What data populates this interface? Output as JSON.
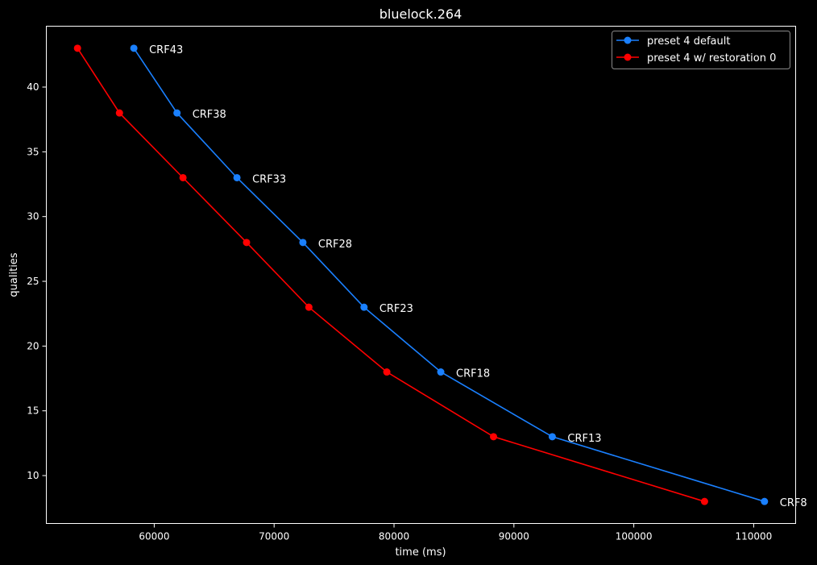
{
  "chart_data": {
    "type": "line",
    "title": "bluelock.264",
    "xlabel": "time (ms)",
    "ylabel": "qualities",
    "xlim": [
      51000,
      113500
    ],
    "ylim": [
      6.3,
      44.7
    ],
    "x_ticks": [
      60000,
      70000,
      80000,
      90000,
      100000,
      110000
    ],
    "y_ticks": [
      10,
      15,
      20,
      25,
      30,
      35,
      40
    ],
    "grid": false,
    "legend_position": "top-right",
    "background": "#000000",
    "series": [
      {
        "name": "preset 4 default",
        "color": "#1a80ff",
        "x": [
          58300,
          61900,
          66900,
          72400,
          77500,
          83900,
          93200,
          110900
        ],
        "y": [
          43,
          38,
          33,
          28,
          23,
          18,
          13,
          8
        ],
        "labels": [
          "CRF43",
          "CRF38",
          "CRF33",
          "CRF28",
          "CRF23",
          "CRF18",
          "CRF13",
          "CRF8"
        ]
      },
      {
        "name": "preset 4 w/ restoration 0",
        "color": "#ff0000",
        "x": [
          53600,
          57100,
          62400,
          67700,
          72900,
          79400,
          88300,
          105900
        ],
        "y": [
          43,
          38,
          33,
          28,
          23,
          18,
          13,
          8
        ]
      }
    ]
  }
}
